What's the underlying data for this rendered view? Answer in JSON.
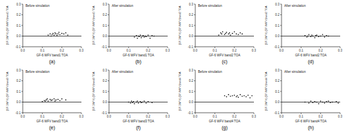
{
  "chart_data": [
    {
      "type": "scatter",
      "title": "Before simulation",
      "caption": "(a)",
      "x_label": "GF-6 WFV band1 TOA",
      "y_label": "(GF-1WFV)-(GF-6WFV)band1 TOA",
      "marker": "circle",
      "color": "#000000",
      "reference_line": 0,
      "xlim": [
        0,
        0.3
      ],
      "xticks": [
        {
          "value": 0,
          "label": "0.0"
        },
        0.1,
        0.2,
        0.3
      ],
      "ylim": [
        -0.1,
        0.3
      ],
      "yticks": [
        -0.1,
        {
          "value": 0,
          "label": "0.0"
        },
        0.1,
        0.2,
        0.3
      ],
      "x": [
        0.13,
        0.14,
        0.145,
        0.15,
        0.155,
        0.16,
        0.165,
        0.17,
        0.175,
        0.18,
        0.185,
        0.19,
        0.2,
        0.21,
        0.22,
        0.23
      ],
      "values": [
        0.01,
        0.02,
        0.0,
        0.015,
        0.025,
        0.01,
        0.03,
        0.02,
        0.005,
        0.02,
        0.035,
        0.015,
        0.025,
        0.02,
        0.03,
        0.01
      ]
    },
    {
      "type": "scatter",
      "title": "After simulation",
      "caption": "(b)",
      "x_label": "GF-6 WFV band1 TOA",
      "y_label": "(GF-1WFV)-(GF-6WFV)band1 TOA",
      "marker": "circle",
      "color": "#000000",
      "reference_line": 0,
      "xlim": [
        0,
        0.3
      ],
      "xticks": [
        {
          "value": 0,
          "label": "0.0"
        },
        0.1,
        0.2,
        0.3
      ],
      "ylim": [
        -0.1,
        0.3
      ],
      "yticks": [
        -0.1,
        {
          "value": 0,
          "label": "0.0"
        },
        0.1,
        0.2,
        0.3
      ],
      "x": [
        0.13,
        0.14,
        0.145,
        0.15,
        0.155,
        0.16,
        0.165,
        0.17,
        0.175,
        0.18,
        0.185,
        0.19,
        0.2,
        0.21,
        0.22,
        0.23
      ],
      "values": [
        -0.01,
        0.005,
        -0.02,
        0.0,
        -0.005,
        0.01,
        -0.015,
        0.0,
        0.005,
        -0.01,
        0.0,
        -0.005,
        0.01,
        -0.02,
        0.005,
        0.0
      ]
    },
    {
      "type": "scatter",
      "title": "Before simulation",
      "caption": "(c)",
      "x_label": "GF-6 WFV band2 TOA",
      "y_label": "(GF-1WFV)-(GF-6WFV)band2 TOA",
      "marker": "circle",
      "color": "#000000",
      "reference_line": 0,
      "xlim": [
        0,
        0.3
      ],
      "xticks": [
        {
          "value": 0,
          "label": "0.0"
        },
        0.1,
        0.2,
        0.3
      ],
      "ylim": [
        -0.1,
        0.3
      ],
      "yticks": [
        -0.1,
        {
          "value": 0,
          "label": "0.0"
        },
        0.1,
        0.2,
        0.3
      ],
      "x": [
        0.12,
        0.13,
        0.135,
        0.14,
        0.15,
        0.155,
        0.16,
        0.17,
        0.175,
        0.18,
        0.19,
        0.2,
        0.21,
        0.22,
        0.23,
        0.24
      ],
      "values": [
        0.01,
        0.03,
        0.02,
        0.04,
        0.015,
        0.025,
        0.035,
        0.02,
        0.03,
        0.01,
        0.025,
        0.04,
        0.02,
        0.015,
        0.03,
        0.02
      ]
    },
    {
      "type": "scatter",
      "title": "After simulation",
      "caption": "(d)",
      "x_label": "GF-6 WFV band2 TOA",
      "y_label": "(GF-1WFV)-(GF-6WFV)band2 TOA",
      "marker": "circle",
      "color": "#000000",
      "reference_line": 0,
      "xlim": [
        0,
        0.3
      ],
      "xticks": [
        {
          "value": 0,
          "label": "0.0"
        },
        0.1,
        0.2,
        0.3
      ],
      "ylim": [
        -0.1,
        0.3
      ],
      "yticks": [
        -0.1,
        {
          "value": 0,
          "label": "0.0"
        },
        0.1,
        0.2,
        0.3
      ],
      "x": [
        0.12,
        0.13,
        0.135,
        0.14,
        0.15,
        0.155,
        0.16,
        0.17,
        0.175,
        0.18,
        0.19,
        0.2,
        0.21,
        0.22,
        0.23,
        0.24
      ],
      "values": [
        0.005,
        -0.01,
        0.0,
        0.015,
        -0.005,
        0.01,
        0.0,
        -0.015,
        0.005,
        0.01,
        -0.005,
        0.0,
        0.015,
        -0.01,
        0.005,
        0.0
      ]
    },
    {
      "type": "scatter",
      "title": "Before simulation",
      "caption": "(e)",
      "x_label": "GF-6 WFV band3 TOA",
      "y_label": "(GF-1WFV)-(GF-6WFV)band3 TOA",
      "marker": "circle",
      "color": "#000000",
      "reference_line": 0,
      "xlim": [
        0,
        0.3
      ],
      "xticks": [
        {
          "value": 0,
          "label": "0.0"
        },
        0.1,
        0.2,
        0.3
      ],
      "ylim": [
        -0.1,
        0.3
      ],
      "yticks": [
        -0.1,
        {
          "value": 0,
          "label": "0.0"
        },
        0.1,
        0.2,
        0.3
      ],
      "x": [
        0.1,
        0.11,
        0.115,
        0.12,
        0.125,
        0.13,
        0.14,
        0.145,
        0.15,
        0.16,
        0.165,
        0.17,
        0.18,
        0.19,
        0.2,
        0.22
      ],
      "values": [
        0.005,
        0.015,
        0.01,
        0.02,
        0.03,
        0.01,
        0.025,
        0.015,
        0.02,
        0.03,
        0.01,
        0.02,
        0.025,
        0.015,
        0.03,
        0.02
      ]
    },
    {
      "type": "scatter",
      "title": "After simulation",
      "caption": "(f)",
      "x_label": "GF-6 WFV band3 TOA",
      "y_label": "(GF-1WFV)-(GF-6WFV)band3 TOA",
      "marker": "circle",
      "color": "#000000",
      "reference_line": 0,
      "xlim": [
        0,
        0.3
      ],
      "xticks": [
        {
          "value": 0,
          "label": "0.0"
        },
        0.1,
        0.2,
        0.3
      ],
      "ylim": [
        -0.1,
        0.3
      ],
      "yticks": [
        -0.1,
        {
          "value": 0,
          "label": "0.0"
        },
        0.1,
        0.2,
        0.3
      ],
      "x": [
        0.1,
        0.11,
        0.115,
        0.12,
        0.125,
        0.13,
        0.14,
        0.145,
        0.15,
        0.16,
        0.165,
        0.17,
        0.18,
        0.19,
        0.2,
        0.22
      ],
      "values": [
        0.0,
        -0.01,
        0.01,
        -0.005,
        0.005,
        -0.015,
        0.0,
        0.01,
        -0.01,
        0.005,
        -0.005,
        0.0,
        0.01,
        -0.01,
        0.005,
        -0.005
      ]
    },
    {
      "type": "scatter",
      "title": "Before simulation",
      "caption": "(g)",
      "x_label": "GF-6 WFV band4 TOA",
      "y_label": "(GF-1WFV)-(GF-6WFV)band4 TOA",
      "marker": "circle",
      "color": "#000000",
      "reference_line": 0,
      "xlim": [
        0,
        0.3
      ],
      "xticks": [
        {
          "value": 0,
          "label": "0.0"
        },
        0.1,
        0.2,
        0.3
      ],
      "ylim": [
        -0.1,
        0.3
      ],
      "yticks": [
        -0.1,
        {
          "value": 0,
          "label": "0.0"
        },
        0.1,
        0.2,
        0.3
      ],
      "x": [
        0.15,
        0.16,
        0.17,
        0.18,
        0.19,
        0.2,
        0.21,
        0.215,
        0.22,
        0.23,
        0.24,
        0.25,
        0.26,
        0.27,
        0.28,
        0.29
      ],
      "values": [
        0.06,
        0.05,
        0.07,
        0.055,
        0.06,
        0.065,
        0.05,
        0.06,
        0.045,
        0.07,
        0.055,
        0.06,
        0.05,
        0.065,
        0.04,
        0.06
      ]
    },
    {
      "type": "scatter",
      "title": "After simulation",
      "caption": "(h)",
      "x_label": "GF-6 WFV band4 TOA",
      "y_label": "(GF-1WFV)-(GF-6WFV)band4 TOA",
      "marker": "circle",
      "color": "#000000",
      "reference_line": 0,
      "xlim": [
        0,
        0.3
      ],
      "xticks": [
        {
          "value": 0,
          "label": "0.0"
        },
        0.1,
        0.2,
        0.3
      ],
      "ylim": [
        -0.1,
        0.3
      ],
      "yticks": [
        -0.1,
        {
          "value": 0,
          "label": "0.0"
        },
        0.1,
        0.2,
        0.3
      ],
      "x": [
        0.12,
        0.14,
        0.15,
        0.16,
        0.17,
        0.18,
        0.19,
        0.2,
        0.21,
        0.22,
        0.23,
        0.24,
        0.25,
        0.26,
        0.28,
        0.29
      ],
      "values": [
        0.0,
        -0.01,
        0.01,
        -0.005,
        0.005,
        0.0,
        -0.015,
        0.01,
        0.0,
        -0.01,
        0.005,
        0.01,
        -0.005,
        0.0,
        0.005,
        -0.01
      ]
    }
  ]
}
